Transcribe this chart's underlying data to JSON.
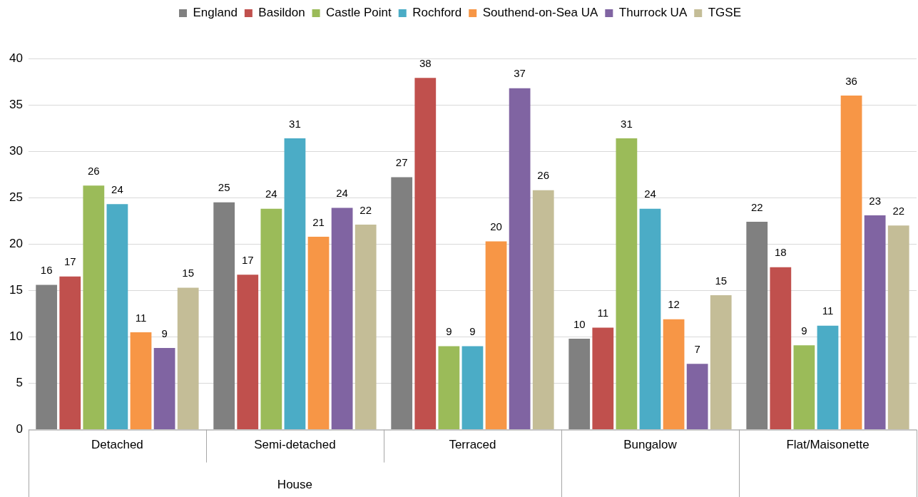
{
  "chart_data": {
    "type": "bar",
    "categories": [
      "Detached",
      "Semi-detached",
      "Terraced",
      "Bungalow",
      "Flat/Maisonette"
    ],
    "series": [
      {
        "name": "England",
        "color": "#808080",
        "values": [
          15.6,
          24.5,
          27.2,
          9.8,
          22.4
        ],
        "value_labels": [
          "16",
          "25",
          "27",
          "10",
          "22"
        ]
      },
      {
        "name": "Basildon",
        "color": "#c0504d",
        "values": [
          16.5,
          16.7,
          37.9,
          11.0,
          17.5
        ],
        "value_labels": [
          "17",
          "17",
          "38",
          "11",
          "18"
        ]
      },
      {
        "name": "Castle Point",
        "color": "#9bbb59",
        "values": [
          26.3,
          23.8,
          9.0,
          31.4,
          9.1
        ],
        "value_labels": [
          "26",
          "24",
          "9",
          "31",
          "9"
        ]
      },
      {
        "name": "Rochford",
        "color": "#4bacc6",
        "values": [
          24.3,
          31.4,
          9.0,
          23.8,
          11.2
        ],
        "value_labels": [
          "24",
          "31",
          "9",
          "24",
          "11"
        ]
      },
      {
        "name": "Southend-on-Sea UA",
        "color": "#f79646",
        "values": [
          10.5,
          20.8,
          20.3,
          11.9,
          36.0
        ],
        "value_labels": [
          "11",
          "21",
          "20",
          "12",
          "36"
        ]
      },
      {
        "name": "Thurrock UA",
        "color": "#8064a2",
        "values": [
          8.8,
          23.9,
          36.8,
          7.1,
          23.1
        ],
        "value_labels": [
          "9",
          "24",
          "37",
          "7",
          "23"
        ]
      },
      {
        "name": "TGSE",
        "color": "#c4bd97",
        "values": [
          15.3,
          22.1,
          25.8,
          14.5,
          22.0
        ],
        "value_labels": [
          "15",
          "22",
          "26",
          "15",
          "22"
        ]
      }
    ],
    "ylim": [
      0,
      40
    ],
    "yticks": [
      0,
      5,
      10,
      15,
      20,
      25,
      30,
      35,
      40
    ],
    "grid": "y",
    "legend": "top",
    "annotations": [
      "House"
    ]
  }
}
